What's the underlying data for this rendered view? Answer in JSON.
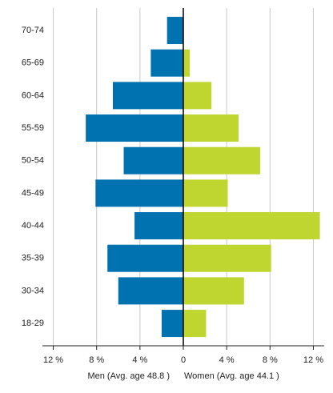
{
  "chart_data": {
    "type": "pyramid",
    "categories": [
      "70-74",
      "65-69",
      "60-64",
      "55-59",
      "50-54",
      "45-49",
      "40-44",
      "35-39",
      "30-34",
      "18-29"
    ],
    "series": [
      {
        "name": "Men (Avg. age 48.8 )",
        "color": "#0072b0",
        "values": [
          -1.5,
          -3.0,
          -6.5,
          -9.0,
          -5.5,
          -8.1,
          -4.5,
          -7.0,
          -6.0,
          -2.0
        ]
      },
      {
        "name": "Women (Avg. age 44.1 )",
        "color": "#bfd630",
        "values": [
          0,
          0.6,
          2.6,
          5.1,
          7.1,
          4.1,
          12.6,
          8.1,
          5.6,
          2.1
        ]
      }
    ],
    "xlim": [
      -13,
      13
    ],
    "xticks": [
      {
        "value": -12,
        "label": "12 %"
      },
      {
        "value": -8,
        "label": "8 %"
      },
      {
        "value": -4,
        "label": "4 %"
      },
      0,
      {
        "value": 4,
        "label": "4 %"
      },
      {
        "value": 8,
        "label": "8 %"
      },
      {
        "value": 12,
        "label": "12 %"
      }
    ],
    "grid": true
  }
}
